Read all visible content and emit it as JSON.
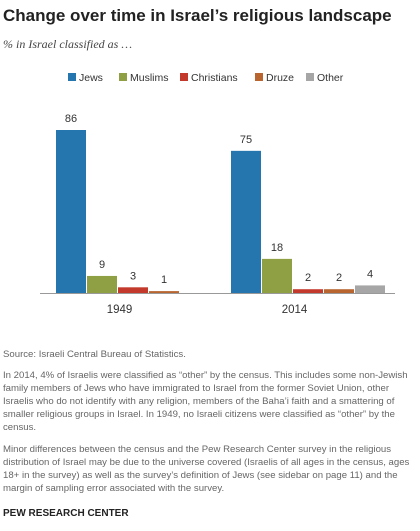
{
  "title": "Change over time in Israel’s religious landscape",
  "subtitle": "% in Israel classified as …",
  "chart_data": {
    "type": "bar",
    "categories": [
      "1949",
      "2014"
    ],
    "series": [
      {
        "name": "Jews",
        "color": "#2576ae",
        "values": [
          86,
          75
        ]
      },
      {
        "name": "Muslims",
        "color": "#8ea043",
        "values": [
          9,
          18
        ]
      },
      {
        "name": "Christians",
        "color": "#c3392b",
        "values": [
          3,
          2
        ]
      },
      {
        "name": "Druze",
        "color": "#b86530",
        "values": [
          1,
          2
        ]
      },
      {
        "name": "Other",
        "color": "#a6a6a6",
        "values": [
          null,
          4
        ]
      }
    ],
    "data_labels": [
      [
        "86",
        "9",
        "3",
        "1",
        ""
      ],
      [
        "75",
        "18",
        "2",
        "2",
        "4"
      ]
    ],
    "ylim": [
      0,
      86
    ],
    "legend_position": "top",
    "grid": false
  },
  "notes": {
    "source": "Source: Israeli Central Bureau of Statistics.",
    "note1": "In 2014, 4% of Israelis were classified as “other” by the census. This includes some non-Jewish family members of Jews who have immigrated to Israel from the former Soviet Union, other Israelis who do not identify with any religion, members of the Baha’i faith and a smattering of smaller religious groups in Israel. In 1949, no Israeli citizens were classified as “other” by the census.",
    "note2": "Minor differences between the census and the Pew Research Center survey in the religious distribution of Israel may be due to the universe covered (Israelis of all ages in the census, ages 18+ in the survey) as well as the survey’s definition of Jews (see sidebar on page 11) and the margin of sampling error associated with the survey."
  },
  "footer": "PEW RESEARCH CENTER"
}
